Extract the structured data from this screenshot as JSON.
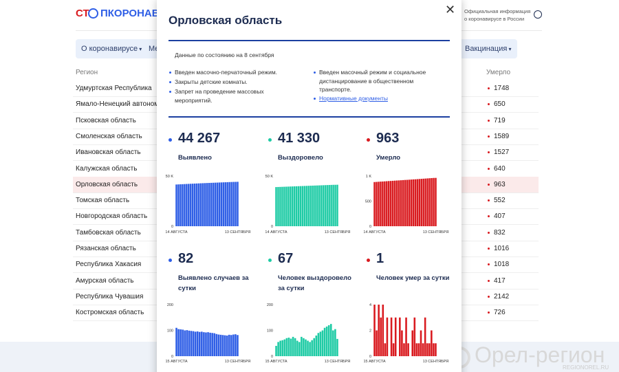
{
  "header": {
    "logo_left": "СТ",
    "logo_right": "ПКОРОНАВИ",
    "info_line1": "Официальная информация",
    "info_line2": "о коронавирусе в России"
  },
  "nav": [
    "О коронавирусе",
    "Ме",
    "Вакцинация"
  ],
  "table": {
    "headers": [
      "Регион",
      "Умерло"
    ],
    "rows": [
      {
        "region": "Удмуртская Республика",
        "deaths": 1748
      },
      {
        "region": "Ямало-Ненецкий автономный округ",
        "deaths": 650
      },
      {
        "region": "Псковская область",
        "deaths": 719
      },
      {
        "region": "Смоленская область",
        "deaths": 1589
      },
      {
        "region": "Ивановская область",
        "deaths": 1527
      },
      {
        "region": "Калужская область",
        "deaths": 640
      },
      {
        "region": "Орловская область",
        "deaths": 963,
        "selected": true
      },
      {
        "region": "Томская область",
        "deaths": 552
      },
      {
        "region": "Новгородская область",
        "deaths": 407
      },
      {
        "region": "Тамбовская область",
        "deaths": 832
      },
      {
        "region": "Рязанская область",
        "deaths": 1016
      },
      {
        "region": "Республика Хакасия",
        "deaths": 1018
      },
      {
        "region": "Амурская область",
        "deaths": 417
      },
      {
        "region": "Республика Чувашия",
        "deaths": 2142
      },
      {
        "region": "Костромская область",
        "deaths": 726
      }
    ]
  },
  "modal": {
    "title": "Орловская область",
    "date_note": "Данные по состоянию на 8 сентября",
    "measures_left": [
      "Введен масочно-перчаточный режим.",
      "Закрыты детские комнаты.",
      "Запрет на проведение массовых мероприятий."
    ],
    "measures_right": [
      "Введен масочный режим и социальное дистанцирование в общественном транспорте."
    ],
    "link": "Нормативные документы"
  },
  "chart_data": [
    {
      "type": "bar",
      "title": "Выявлено",
      "headline": {
        "value": 44267,
        "label": "44 267"
      },
      "color": "#2e5ee6",
      "categories": [
        "14 АВГУСТА",
        null,
        null,
        null,
        null,
        null,
        null,
        null,
        null,
        null,
        null,
        null,
        null,
        null,
        null,
        null,
        null,
        null,
        null,
        null,
        null,
        null,
        null,
        null,
        null,
        null,
        null,
        null,
        null,
        null,
        "13 СЕНТЯБРЯ"
      ],
      "values": [
        41560,
        41670,
        41775,
        41880,
        41985,
        42090,
        42190,
        42290,
        42385,
        42480,
        42575,
        42670,
        42765,
        42855,
        42945,
        43035,
        43125,
        43210,
        43295,
        43380,
        43465,
        43550,
        43635,
        43720,
        43805,
        43890,
        43970,
        44050,
        44130,
        44185,
        44267
      ],
      "ylim": [
        0,
        50000
      ],
      "yticks": [
        0,
        {
          "value": 50000,
          "label": "50 K"
        }
      ]
    },
    {
      "type": "bar",
      "title": "Выздоровело",
      "headline": {
        "value": 41330,
        "label": "41 330"
      },
      "color": "#1ecba5",
      "categories": [
        "14 АВГУСТА",
        null,
        null,
        null,
        null,
        null,
        null,
        null,
        null,
        null,
        null,
        null,
        null,
        null,
        null,
        null,
        null,
        null,
        null,
        null,
        null,
        null,
        null,
        null,
        null,
        null,
        null,
        null,
        null,
        null,
        "13 СЕНТЯБРЯ"
      ],
      "values": [
        39000,
        39080,
        39160,
        39240,
        39320,
        39400,
        39480,
        39560,
        39640,
        39720,
        39800,
        39880,
        39960,
        40040,
        40120,
        40200,
        40280,
        40360,
        40440,
        40520,
        40600,
        40680,
        40760,
        40840,
        40920,
        41000,
        41080,
        41160,
        41240,
        41263,
        41330
      ],
      "ylim": [
        0,
        50000
      ],
      "yticks": [
        0,
        {
          "value": 50000,
          "label": "50 K"
        }
      ]
    },
    {
      "type": "bar",
      "title": "Умерло",
      "headline": 963,
      "color": "#d91a1f",
      "categories": [
        "14 АВГУСТА",
        null,
        null,
        null,
        null,
        null,
        null,
        null,
        null,
        null,
        null,
        null,
        null,
        null,
        null,
        null,
        null,
        null,
        null,
        null,
        null,
        null,
        null,
        null,
        null,
        null,
        null,
        null,
        null,
        null,
        "13 СЕНТЯБРЯ"
      ],
      "values": [
        880,
        883,
        886,
        889,
        891,
        894,
        897,
        900,
        902,
        905,
        908,
        911,
        913,
        916,
        919,
        922,
        924,
        927,
        930,
        933,
        935,
        938,
        941,
        944,
        947,
        950,
        953,
        956,
        959,
        962,
        963
      ],
      "ylim": [
        0,
        1000
      ],
      "yticks": [
        0,
        500,
        {
          "value": 1000,
          "label": "1 K"
        }
      ]
    },
    {
      "type": "bar",
      "title": "Выявлено случаев за сутки",
      "headline": 82,
      "color": "#2e5ee6",
      "categories": [
        "15 АВГУСТА",
        null,
        null,
        null,
        null,
        null,
        null,
        null,
        null,
        null,
        null,
        null,
        null,
        null,
        null,
        null,
        null,
        null,
        null,
        null,
        null,
        null,
        null,
        null,
        null,
        null,
        null,
        null,
        null,
        "13 СЕНТЯБРЯ"
      ],
      "values": [
        110,
        105,
        104,
        103,
        100,
        101,
        99,
        98,
        97,
        95,
        96,
        94,
        95,
        93,
        92,
        93,
        91,
        90,
        89,
        86,
        84,
        83,
        82,
        81,
        80,
        83,
        82,
        84,
        85,
        82
      ],
      "ylim": [
        0,
        200
      ],
      "yticks": [
        0,
        100,
        200
      ]
    },
    {
      "type": "bar",
      "title": "Человек выздоровело за сутки",
      "headline": 67,
      "color": "#1ecba5",
      "categories": [
        "15 АВГУСТА",
        null,
        null,
        null,
        null,
        null,
        null,
        null,
        null,
        null,
        null,
        null,
        null,
        null,
        null,
        null,
        null,
        null,
        null,
        null,
        null,
        null,
        null,
        null,
        null,
        null,
        null,
        null,
        null,
        "13 СЕНТЯБРЯ"
      ],
      "values": [
        40,
        55,
        60,
        62,
        65,
        70,
        72,
        68,
        75,
        70,
        60,
        55,
        75,
        70,
        65,
        60,
        55,
        62,
        70,
        80,
        90,
        95,
        100,
        110,
        115,
        120,
        125,
        100,
        105,
        67
      ],
      "ylim": [
        0,
        200
      ],
      "yticks": [
        0,
        100,
        200
      ]
    },
    {
      "type": "bar",
      "title": "Человек умер за сутки",
      "headline": 1,
      "color": "#d91a1f",
      "categories": [
        "15 АВГУСТА",
        null,
        null,
        null,
        null,
        null,
        null,
        null,
        null,
        null,
        null,
        null,
        null,
        null,
        null,
        null,
        null,
        null,
        null,
        null,
        null,
        null,
        null,
        null,
        null,
        null,
        null,
        null,
        null,
        "13 СЕНТЯБРЯ"
      ],
      "values": [
        4,
        2,
        4,
        3,
        4,
        1,
        3,
        0,
        3,
        1,
        3,
        0,
        3,
        2,
        1,
        3,
        1,
        0,
        2,
        3,
        1,
        1,
        2,
        1,
        3,
        1,
        1,
        2,
        1,
        1
      ],
      "ylim": [
        0,
        4
      ],
      "yticks": [
        0,
        2,
        4
      ]
    }
  ],
  "watermark": {
    "name": "Орел-регион",
    "url": "REGIONOREL.RU"
  }
}
